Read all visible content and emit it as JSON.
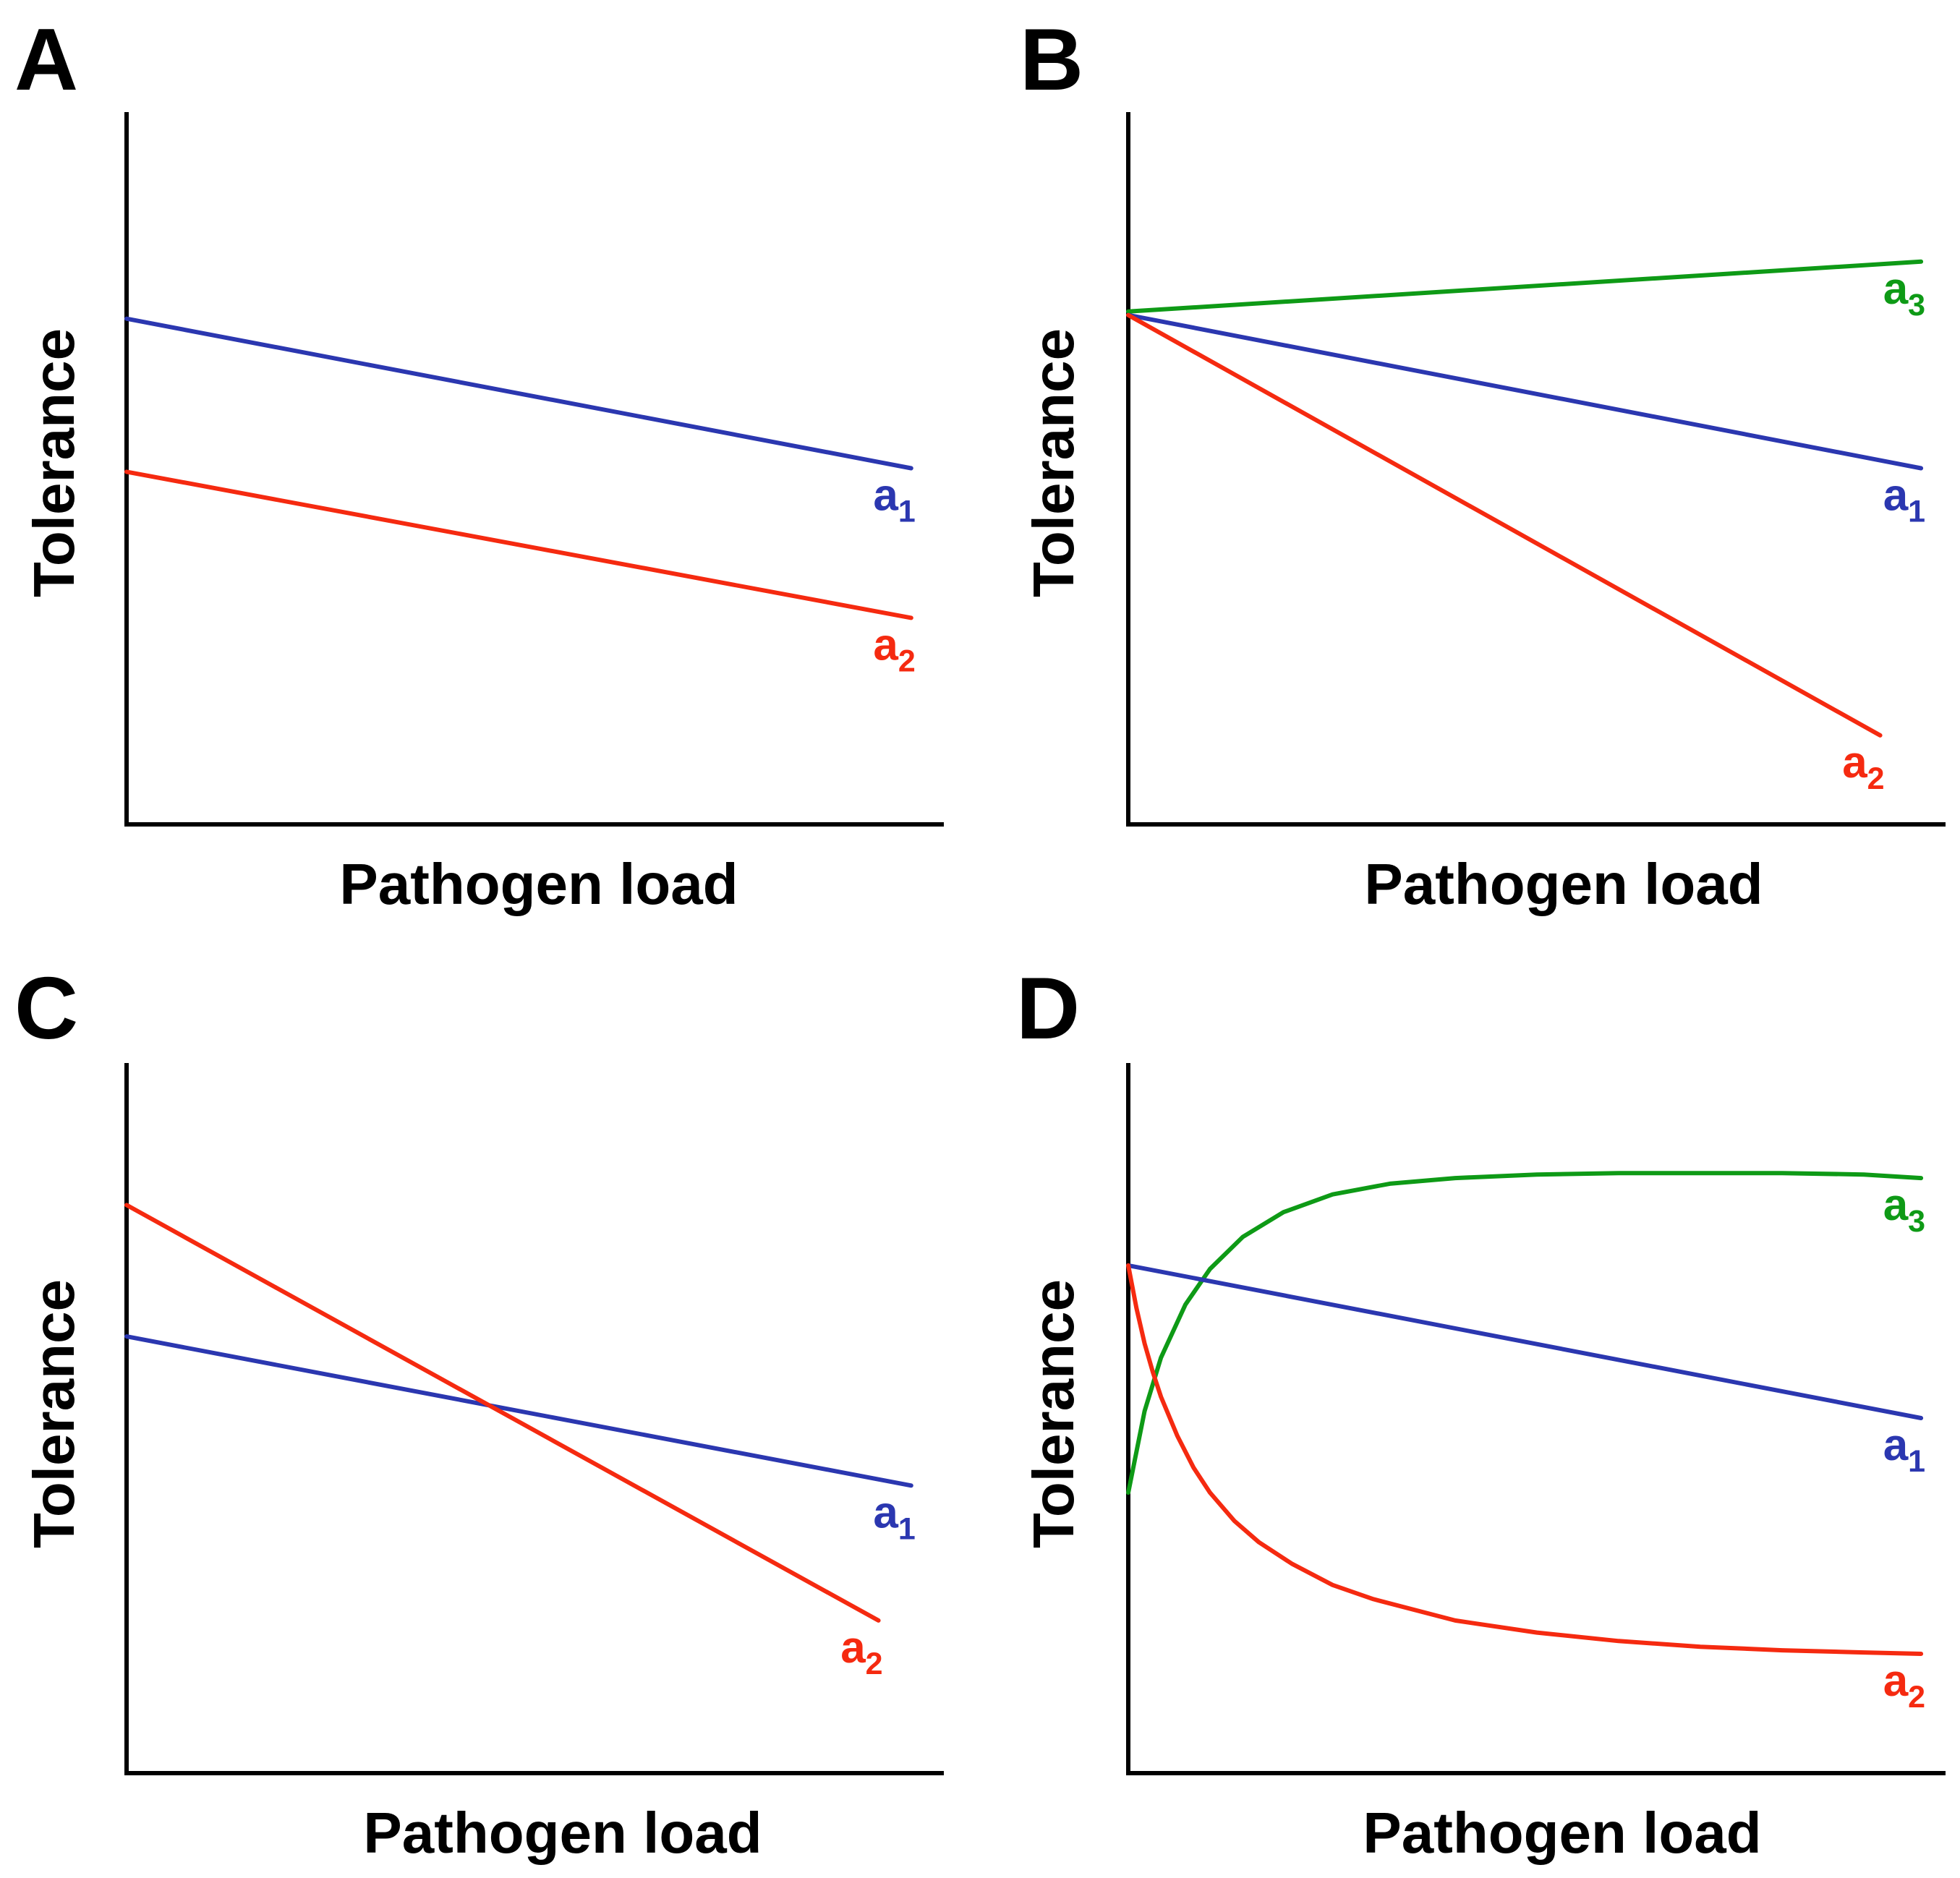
{
  "colors": {
    "a1": "#2b37b0",
    "a2": "#f52a10",
    "a3": "#0e9a16",
    "axis": "#000000"
  },
  "chart_data": [
    {
      "type": "line",
      "panel": "A",
      "xlabel": "Pathogen load",
      "ylabel": "Tolerance",
      "xlim": [
        0,
        100
      ],
      "ylim": [
        0,
        100
      ],
      "grid": false,
      "series": [
        {
          "name": "a1",
          "label": "a",
          "sub": "1",
          "color_key": "a1",
          "x": [
            0,
            96
          ],
          "y": [
            71,
            50
          ]
        },
        {
          "name": "a2",
          "label": "a",
          "sub": "2",
          "color_key": "a2",
          "x": [
            0,
            96
          ],
          "y": [
            49.5,
            29
          ]
        }
      ]
    },
    {
      "type": "line",
      "panel": "B",
      "xlabel": "Pathogen load",
      "ylabel": "Tolerance",
      "xlim": [
        0,
        100
      ],
      "ylim": [
        0,
        100
      ],
      "grid": false,
      "series": [
        {
          "name": "a3",
          "label": "a",
          "sub": "3",
          "color_key": "a3",
          "x": [
            0,
            97
          ],
          "y": [
            72,
            79
          ]
        },
        {
          "name": "a1",
          "label": "a",
          "sub": "1",
          "color_key": "a1",
          "x": [
            0,
            97
          ],
          "y": [
            71.5,
            50
          ]
        },
        {
          "name": "a2",
          "label": "a",
          "sub": "2",
          "color_key": "a2",
          "x": [
            0,
            92
          ],
          "y": [
            71.5,
            12.5
          ]
        }
      ]
    },
    {
      "type": "line",
      "panel": "C",
      "xlabel": "Pathogen load",
      "ylabel": "Tolerance",
      "xlim": [
        0,
        100
      ],
      "ylim": [
        0,
        100
      ],
      "grid": false,
      "series": [
        {
          "name": "a1",
          "label": "a",
          "sub": "1",
          "color_key": "a1",
          "x": [
            0,
            96
          ],
          "y": [
            61.5,
            40.5
          ]
        },
        {
          "name": "a2",
          "label": "a",
          "sub": "2",
          "color_key": "a2",
          "x": [
            0,
            92
          ],
          "y": [
            80,
            21.5
          ]
        }
      ]
    },
    {
      "type": "line",
      "panel": "D",
      "xlabel": "Pathogen load",
      "ylabel": "Tolerance",
      "xlim": [
        0,
        100
      ],
      "ylim": [
        0,
        100
      ],
      "grid": false,
      "series": [
        {
          "name": "a3",
          "label": "a",
          "sub": "3",
          "color_key": "a3",
          "x": [
            0,
            2,
            4,
            7,
            10,
            14,
            19,
            25,
            32,
            40,
            50,
            60,
            70,
            80,
            90,
            97
          ],
          "y": [
            39.5,
            51,
            58.5,
            66,
            71,
            75.5,
            79,
            81.5,
            83,
            83.8,
            84.3,
            84.5,
            84.5,
            84.5,
            84.3,
            83.8
          ]
        },
        {
          "name": "a1",
          "label": "a",
          "sub": "1",
          "color_key": "a1",
          "x": [
            0,
            97
          ],
          "y": [
            71.5,
            50
          ]
        },
        {
          "name": "a2",
          "label": "a",
          "sub": "2",
          "color_key": "a2",
          "x": [
            0,
            1,
            2,
            3,
            4,
            6,
            8,
            10,
            13,
            16,
            20,
            25,
            30,
            40,
            50,
            60,
            70,
            80,
            90,
            97
          ],
          "y": [
            71.5,
            65.5,
            60.5,
            56.5,
            53,
            47.5,
            43,
            39.5,
            35.5,
            32.5,
            29.5,
            26.5,
            24.5,
            21.5,
            19.8,
            18.6,
            17.8,
            17.3,
            17,
            16.8
          ]
        }
      ]
    }
  ]
}
